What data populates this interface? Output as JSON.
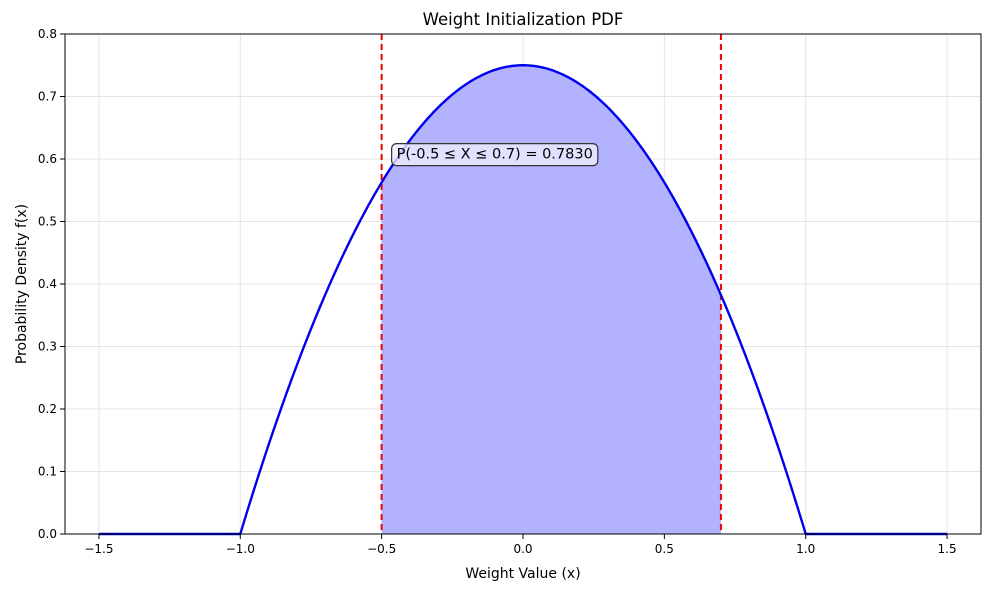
{
  "chart_data": {
    "type": "line",
    "title": "Weight Initialization PDF",
    "xlabel": "Weight Value (x)",
    "ylabel": "Probability Density f(x)",
    "xlim": [
      -1.62,
      1.62
    ],
    "ylim": [
      0,
      0.8
    ],
    "xticks": [
      -1.5,
      -1.0,
      -0.5,
      0.0,
      0.5,
      1.0,
      1.5
    ],
    "xtick_labels": [
      "−1.5",
      "−1.0",
      "−0.5",
      "0.0",
      "0.5",
      "1.0",
      "1.5"
    ],
    "yticks": [
      0.0,
      0.1,
      0.2,
      0.3,
      0.4,
      0.5,
      0.6,
      0.7,
      0.8
    ],
    "ytick_labels": [
      "0.0",
      "0.1",
      "0.2",
      "0.3",
      "0.4",
      "0.5",
      "0.6",
      "0.7",
      "0.8"
    ],
    "grid": true,
    "series": [
      {
        "color": "#0000ee",
        "x": [
          -1.5,
          -1.4,
          -1.3,
          -1.2,
          -1.1,
          -1.0,
          -0.9,
          -0.8,
          -0.7,
          -0.6,
          -0.5,
          -0.4,
          -0.3,
          -0.2,
          -0.1,
          0.0,
          0.1,
          0.2,
          0.3,
          0.4,
          0.5,
          0.6,
          0.7,
          0.8,
          0.9,
          1.0,
          1.1,
          1.2,
          1.3,
          1.4,
          1.5
        ],
        "y": [
          0,
          0,
          0,
          0,
          0,
          0,
          0.1425,
          0.27,
          0.3825,
          0.48,
          0.5625,
          0.63,
          0.6825,
          0.72,
          0.7425,
          0.75,
          0.7425,
          0.72,
          0.6825,
          0.63,
          0.5625,
          0.48,
          0.3825,
          0.27,
          0.1425,
          0,
          0,
          0,
          0,
          0,
          0
        ]
      }
    ],
    "shaded_region": {
      "from": -0.5,
      "to": 0.7,
      "color": "#b2b2ff"
    },
    "vlines": [
      {
        "x": -0.5,
        "color": "#ee0000",
        "style": "dashed"
      },
      {
        "x": 0.7,
        "color": "#ee0000",
        "style": "dashed"
      }
    ],
    "annotation": {
      "text": "P(-0.5 ≤ X ≤ 0.7) = 0.7830",
      "x": -0.1,
      "y": 0.607
    }
  }
}
